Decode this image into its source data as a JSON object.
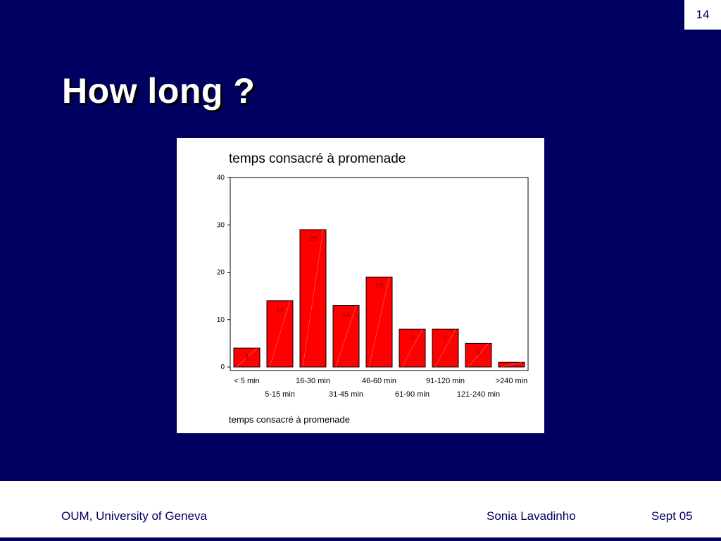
{
  "slide": {
    "page_number": "14",
    "title": "How long ?"
  },
  "footer": {
    "institution": "OUM, University of Geneva",
    "author": "Sonia Lavadinho",
    "date": "Sept 05"
  },
  "colors": {
    "background": "#000060",
    "bar_fill": "#ff0000",
    "data_label": "#990000"
  },
  "chart_data": {
    "type": "bar",
    "title": "temps consacré à promenade",
    "xlabel": "temps consacré à promenade",
    "ylabel": "",
    "categories": [
      "< 5 min",
      "5-15 min",
      "16-30 min",
      "31-45 min",
      "46-60 min",
      "61-90 min",
      "91-120 min",
      "121-240 min",
      ">240 min"
    ],
    "values": [
      4,
      14,
      29,
      13,
      19,
      8,
      8,
      5,
      1
    ],
    "data_labels": [
      "4",
      "14",
      "29",
      "13",
      "19",
      "8",
      "8",
      "5",
      ""
    ],
    "ylim": [
      0,
      40
    ],
    "yticks": [
      "0",
      "10",
      "20",
      "30",
      "40"
    ],
    "grid": false,
    "legend": "none"
  }
}
